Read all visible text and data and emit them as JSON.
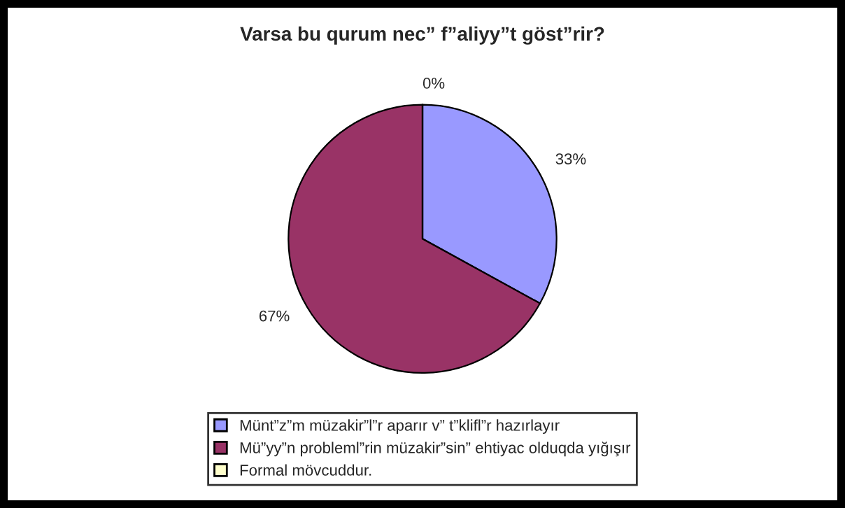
{
  "chart_data": {
    "type": "pie",
    "title": "Varsa bu qurum nec” f”aliyy”t göst”rir?",
    "categories": [
      "Münt”z”m müzakir”l”r aparır v” t”klifl”r hazırlayır",
      "Mü”yy”n probleml”rin müzakir”sin” ehtiyac olduqda yığışır",
      "Formal mövcuddur."
    ],
    "values": [
      33,
      67,
      0
    ],
    "value_labels": [
      "33%",
      "67%",
      "0%"
    ],
    "colors": [
      "#9999ff",
      "#993366",
      "#ffffcc"
    ],
    "legend": "bottom"
  }
}
